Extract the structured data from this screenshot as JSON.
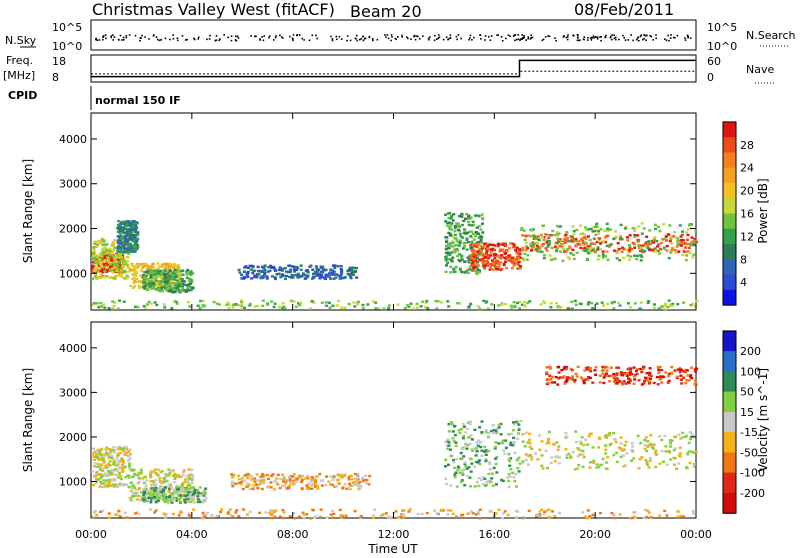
{
  "header": {
    "radar": "Christmas Valley West (fitACF)",
    "beam": "Beam 20",
    "date": "08/Feb/2011"
  },
  "summary": {
    "nsky_label": "N.Sky",
    "nsky_ticks": [
      "10^5",
      "10^0"
    ],
    "nsearch_label": "N.Search",
    "nsearch_ticks": [
      "10^5",
      "10^0"
    ],
    "freq_label": "Freq.",
    "freq_unit": "[MHz]",
    "freq_ticks": [
      "18",
      "8"
    ],
    "nave_label": "Nave",
    "nave_ticks": [
      "60",
      "0"
    ],
    "cpid_label": "CPID",
    "cpid_value": "normal 150 IF"
  },
  "chart_data": [
    {
      "type": "heatmap",
      "name": "power",
      "ylabel": "Slant Range [km]",
      "yticks": [
        1000,
        2000,
        3000,
        4000
      ],
      "ylim": [
        180,
        4580
      ],
      "xlim": [
        0,
        24
      ],
      "xticks": [
        "00:00",
        "04:00",
        "08:00",
        "12:00",
        "16:00",
        "20:00",
        "00:00"
      ],
      "colorbar": {
        "label": "Power [dB]",
        "ticks": [
          "28",
          "24",
          "20",
          "16",
          "12",
          "8",
          "4"
        ],
        "colors": [
          "#0a14e6",
          "#2a4bd2",
          "#2f64b9",
          "#2e7d5a",
          "#33a04c",
          "#6fc43c",
          "#c7d83a",
          "#f3c21c",
          "#f7a21e",
          "#f57f1e",
          "#ee4a1c",
          "#e01414"
        ]
      },
      "regions": [
        {
          "t": [
            0.0,
            1.2
          ],
          "r": [
            1050,
            1450
          ],
          "level": 11
        },
        {
          "t": [
            0.0,
            1.5
          ],
          "r": [
            900,
            1800
          ],
          "level": 6
        },
        {
          "t": [
            1.0,
            1.8
          ],
          "r": [
            1500,
            2200
          ],
          "level": 3
        },
        {
          "t": [
            1.5,
            3.5
          ],
          "r": [
            700,
            1250
          ],
          "level": 7
        },
        {
          "t": [
            2.0,
            4.0
          ],
          "r": [
            600,
            1100
          ],
          "level": 4
        },
        {
          "t": [
            5.8,
            10.5
          ],
          "r": [
            900,
            1200
          ],
          "level": 2
        },
        {
          "t": [
            0.0,
            24.0
          ],
          "r": [
            230,
            420
          ],
          "level": 5
        },
        {
          "t": [
            14.0,
            15.5
          ],
          "r": [
            1000,
            2400
          ],
          "level": 4
        },
        {
          "t": [
            15.0,
            17.0
          ],
          "r": [
            1100,
            1700
          ],
          "level": 10
        },
        {
          "t": [
            17.0,
            24.0
          ],
          "r": [
            1500,
            1900
          ],
          "level": 10
        },
        {
          "t": [
            17.0,
            24.0
          ],
          "r": [
            1300,
            2150
          ],
          "level": 5
        }
      ],
      "xlabel": ""
    },
    {
      "type": "heatmap",
      "name": "velocity",
      "ylabel": "Slant Range [km]",
      "yticks": [
        1000,
        2000,
        3000,
        4000
      ],
      "ylim": [
        180,
        4580
      ],
      "xlim": [
        0,
        24
      ],
      "xticks": [
        "00:00",
        "04:00",
        "08:00",
        "12:00",
        "16:00",
        "20:00",
        "00:00"
      ],
      "xlabel": "Time UT",
      "colorbar": {
        "label": "Velocity [m s^-1]",
        "ticks": [
          "200",
          "100",
          "50",
          "15",
          "-15",
          "-50",
          "-100",
          "-200"
        ],
        "colors": [
          "#1414c8",
          "#2a6ec8",
          "#2e8b57",
          "#7fd23c",
          "#c8c8c8",
          "#f5b014",
          "#f07814",
          "#e02814",
          "#d20a0a"
        ]
      },
      "regions": [
        {
          "t": [
            0.0,
            1.5
          ],
          "r": [
            900,
            1800
          ],
          "level": 4
        },
        {
          "t": [
            1.5,
            4.0
          ],
          "r": [
            600,
            1300
          ],
          "level": 4
        },
        {
          "t": [
            2.0,
            4.5
          ],
          "r": [
            550,
            900
          ],
          "level": 3
        },
        {
          "t": [
            5.5,
            11.0
          ],
          "r": [
            850,
            1200
          ],
          "level": 5
        },
        {
          "t": [
            0.0,
            24.0
          ],
          "r": [
            200,
            400
          ],
          "level": 5
        },
        {
          "t": [
            14.0,
            17.0
          ],
          "r": [
            900,
            2400
          ],
          "level": 3
        },
        {
          "t": [
            17.0,
            24.0
          ],
          "r": [
            1300,
            2150
          ],
          "level": 4
        },
        {
          "t": [
            18.0,
            24.0
          ],
          "r": [
            3200,
            3600
          ],
          "level": 7
        }
      ]
    }
  ],
  "nave_series": {
    "t": [
      0,
      17.0,
      17.0,
      24
    ],
    "values": [
      12,
      12,
      48,
      48
    ]
  },
  "freq_series": {
    "t": [
      0,
      17.0,
      17.0,
      24
    ],
    "values": [
      11,
      11,
      12,
      12
    ]
  }
}
